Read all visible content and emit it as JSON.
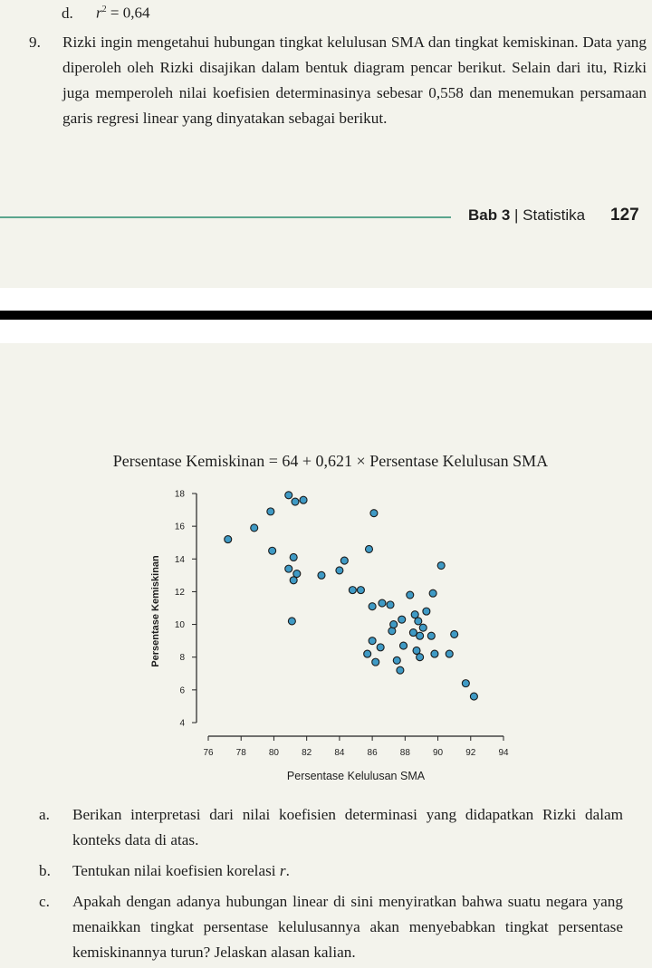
{
  "prev_item": {
    "label": "d.",
    "var": "r",
    "exp": "2",
    "rest": " = 0,64"
  },
  "question9": {
    "number": "9.",
    "text": "Rizki ingin mengetahui hubungan tingkat kelulusan SMA dan tingkat kemiskinan. Data yang diperoleh oleh Rizki disajikan dalam bentuk diagram pencar berikut. Selain dari itu, Rizki juga memperoleh nilai koefisien determinasinya sebesar 0,558 dan menemukan persamaan garis regresi linear yang dinyatakan sebagai berikut."
  },
  "footer": {
    "chapter_bold": "Bab 3",
    "chapter_rest": " | Statistika",
    "page": "127"
  },
  "equation": "Persentase Kemiskinan = 64 + 0,621 × Persentase Kelulusan SMA",
  "chart_data": {
    "type": "scatter",
    "xlabel": "Persentase Kelulusan SMA",
    "ylabel": "Persentase Kemiskinan",
    "xlim": [
      76,
      94
    ],
    "ylim": [
      4,
      18
    ],
    "xticks": [
      "76",
      "78",
      "80",
      "82",
      "84",
      "86",
      "88",
      "90",
      "92",
      "94"
    ],
    "yticks": [
      "4",
      "6",
      "8",
      "10",
      "12",
      "14",
      "16",
      "18"
    ],
    "point_color": "#3f9ac5",
    "points": [
      [
        77.2,
        15.2
      ],
      [
        78.8,
        15.9
      ],
      [
        79.8,
        16.9
      ],
      [
        79.9,
        14.5
      ],
      [
        80.9,
        17.9
      ],
      [
        81.3,
        17.5
      ],
      [
        81.8,
        17.6
      ],
      [
        81.2,
        14.1
      ],
      [
        80.9,
        13.4
      ],
      [
        81.4,
        13.1
      ],
      [
        81.2,
        12.7
      ],
      [
        81.1,
        10.2
      ],
      [
        82.9,
        13.0
      ],
      [
        84.0,
        13.3
      ],
      [
        84.3,
        13.9
      ],
      [
        84.8,
        12.1
      ],
      [
        85.3,
        12.1
      ],
      [
        85.8,
        14.6
      ],
      [
        86.1,
        16.8
      ],
      [
        86.0,
        11.1
      ],
      [
        86.6,
        11.3
      ],
      [
        87.1,
        11.2
      ],
      [
        86.0,
        9.0
      ],
      [
        86.5,
        8.6
      ],
      [
        85.7,
        8.2
      ],
      [
        86.2,
        7.7
      ],
      [
        87.5,
        7.8
      ],
      [
        87.7,
        7.2
      ],
      [
        87.2,
        9.6
      ],
      [
        87.3,
        10.0
      ],
      [
        87.8,
        10.3
      ],
      [
        87.9,
        8.7
      ],
      [
        88.3,
        11.8
      ],
      [
        88.5,
        9.5
      ],
      [
        88.6,
        10.6
      ],
      [
        88.8,
        10.2
      ],
      [
        89.1,
        9.8
      ],
      [
        88.9,
        9.3
      ],
      [
        88.7,
        8.4
      ],
      [
        88.9,
        8.0
      ],
      [
        89.3,
        10.8
      ],
      [
        89.6,
        9.3
      ],
      [
        89.8,
        8.2
      ],
      [
        89.7,
        11.9
      ],
      [
        90.2,
        13.6
      ],
      [
        90.7,
        8.2
      ],
      [
        91.0,
        9.4
      ],
      [
        91.7,
        6.4
      ],
      [
        92.2,
        5.6
      ]
    ]
  },
  "questions": [
    {
      "label": "a.",
      "text": "Berikan interpretasi dari nilai koefisien determinasi yang didapatkan Rizki dalam konteks data di atas."
    },
    {
      "label": "b.",
      "text_before": "Tentukan nilai koefisien korelasi ",
      "var": "r",
      "text_after": "."
    },
    {
      "label": "c.",
      "text": "Apakah dengan adanya hubungan linear di sini menyiratkan bahwa suatu negara yang menaikkan tingkat persentase kelulusannya akan menyebabkan tingkat persentase kemiskinannya turun? Jelaskan alasan kalian."
    }
  ]
}
